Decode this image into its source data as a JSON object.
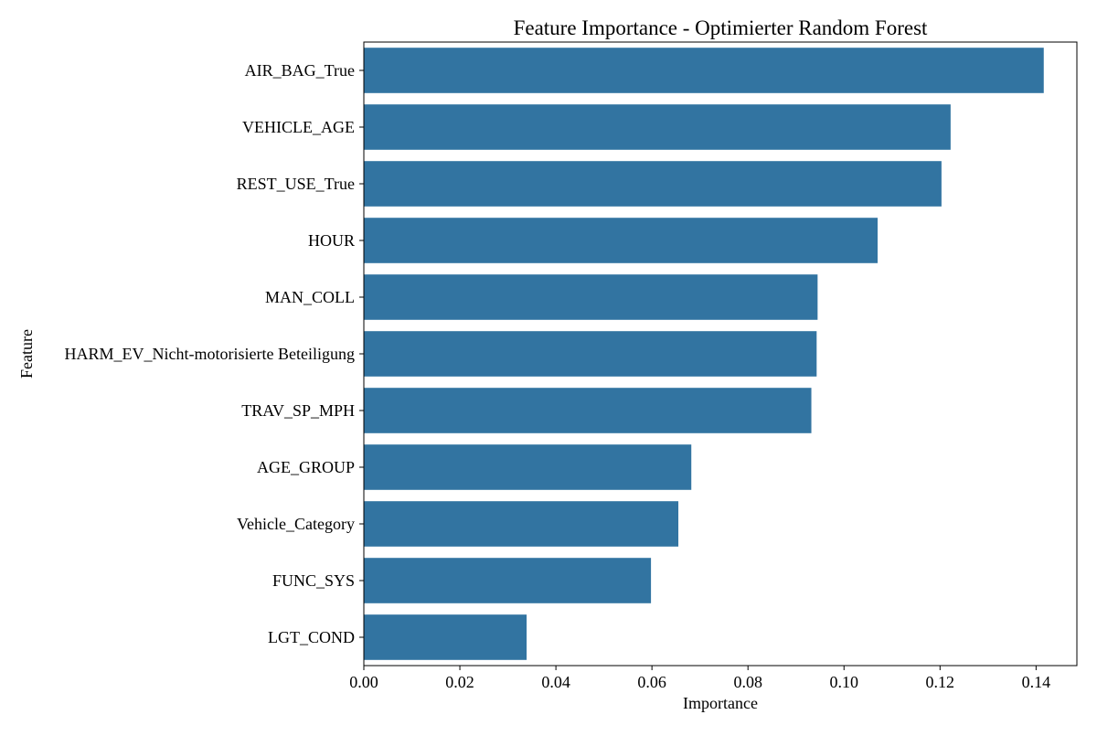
{
  "chart_data": {
    "type": "bar",
    "orientation": "horizontal",
    "title": "Feature Importance - Optimierter Random Forest",
    "xlabel": "Importance",
    "ylabel": "Feature",
    "categories": [
      "AIR_BAG_True",
      "VEHICLE_AGE",
      "REST_USE_True",
      "HOUR",
      "MAN_COLL",
      "HARM_EV_Nicht-motorisierte Beteiligung",
      "TRAV_SP_MPH",
      "AGE_GROUP",
      "Vehicle_Category",
      "FUNC_SYS",
      "LGT_COND"
    ],
    "values": [
      0.1416,
      0.1222,
      0.1203,
      0.107,
      0.0945,
      0.0943,
      0.0932,
      0.0682,
      0.0655,
      0.0598,
      0.0339
    ],
    "xlim": [
      0.0,
      0.1485
    ],
    "xticks": [
      "0.00",
      "0.02",
      "0.04",
      "0.06",
      "0.08",
      "0.10",
      "0.12",
      "0.14"
    ],
    "bar_color": "#3274a1",
    "grid": false,
    "legend": "none"
  }
}
